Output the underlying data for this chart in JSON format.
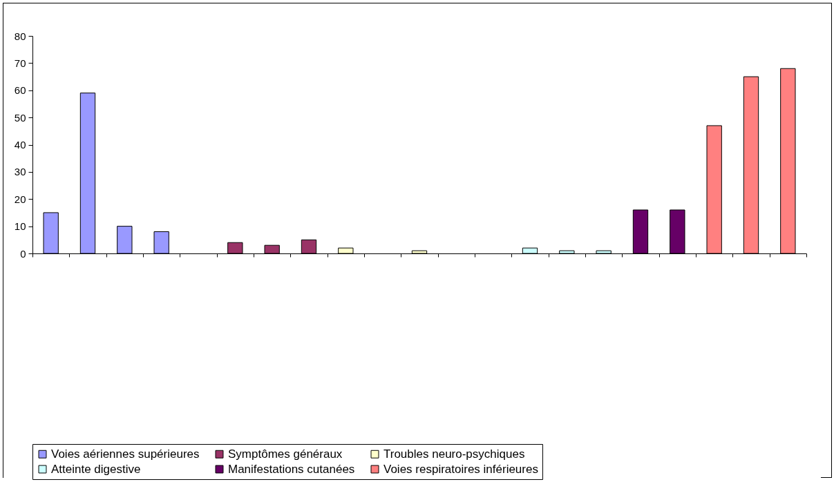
{
  "chart_data": {
    "type": "bar",
    "grid": false,
    "legend": "bottom",
    "categories": [
      null,
      null,
      null,
      null,
      null,
      null,
      null,
      null,
      null,
      null,
      null,
      null,
      null,
      null,
      null,
      null,
      null,
      null,
      null,
      null,
      null
    ],
    "ylim": [
      0,
      80
    ],
    "yticks": [
      0,
      10,
      20,
      30,
      40,
      50,
      60,
      70,
      80
    ],
    "series": [
      {
        "name": "Voies aériennes supérieures",
        "color": "#9999ff",
        "values": [
          15,
          59,
          10,
          8,
          null,
          null,
          null,
          null,
          null,
          null,
          null,
          null,
          null,
          null,
          null,
          null,
          null,
          null,
          null,
          null,
          null
        ]
      },
      {
        "name": "Symptômes généraux",
        "color": "#993366",
        "values": [
          null,
          null,
          null,
          null,
          null,
          4,
          3,
          5,
          null,
          null,
          null,
          null,
          null,
          null,
          null,
          null,
          null,
          null,
          null,
          null,
          null
        ]
      },
      {
        "name": "Troubles neuro-psychiques",
        "color": "#ffffcc",
        "values": [
          null,
          null,
          null,
          null,
          null,
          null,
          null,
          null,
          2,
          null,
          1,
          null,
          null,
          null,
          null,
          null,
          null,
          null,
          null,
          null,
          null
        ]
      },
      {
        "name": "Atteinte digestive",
        "color": "#ccffff",
        "values": [
          null,
          null,
          null,
          null,
          null,
          null,
          null,
          null,
          null,
          null,
          null,
          null,
          null,
          2,
          1,
          1,
          null,
          null,
          null,
          null,
          null
        ]
      },
      {
        "name": "Manifestations cutanées",
        "color": "#660066",
        "values": [
          null,
          null,
          null,
          null,
          null,
          null,
          null,
          null,
          null,
          null,
          null,
          null,
          null,
          null,
          null,
          null,
          16,
          16,
          null,
          null,
          null
        ]
      },
      {
        "name": "Voies respiratoires inférieures",
        "color": "#ff8080",
        "values": [
          null,
          null,
          null,
          null,
          null,
          null,
          null,
          null,
          null,
          null,
          null,
          null,
          null,
          null,
          null,
          null,
          null,
          null,
          47,
          65,
          68
        ]
      }
    ]
  }
}
